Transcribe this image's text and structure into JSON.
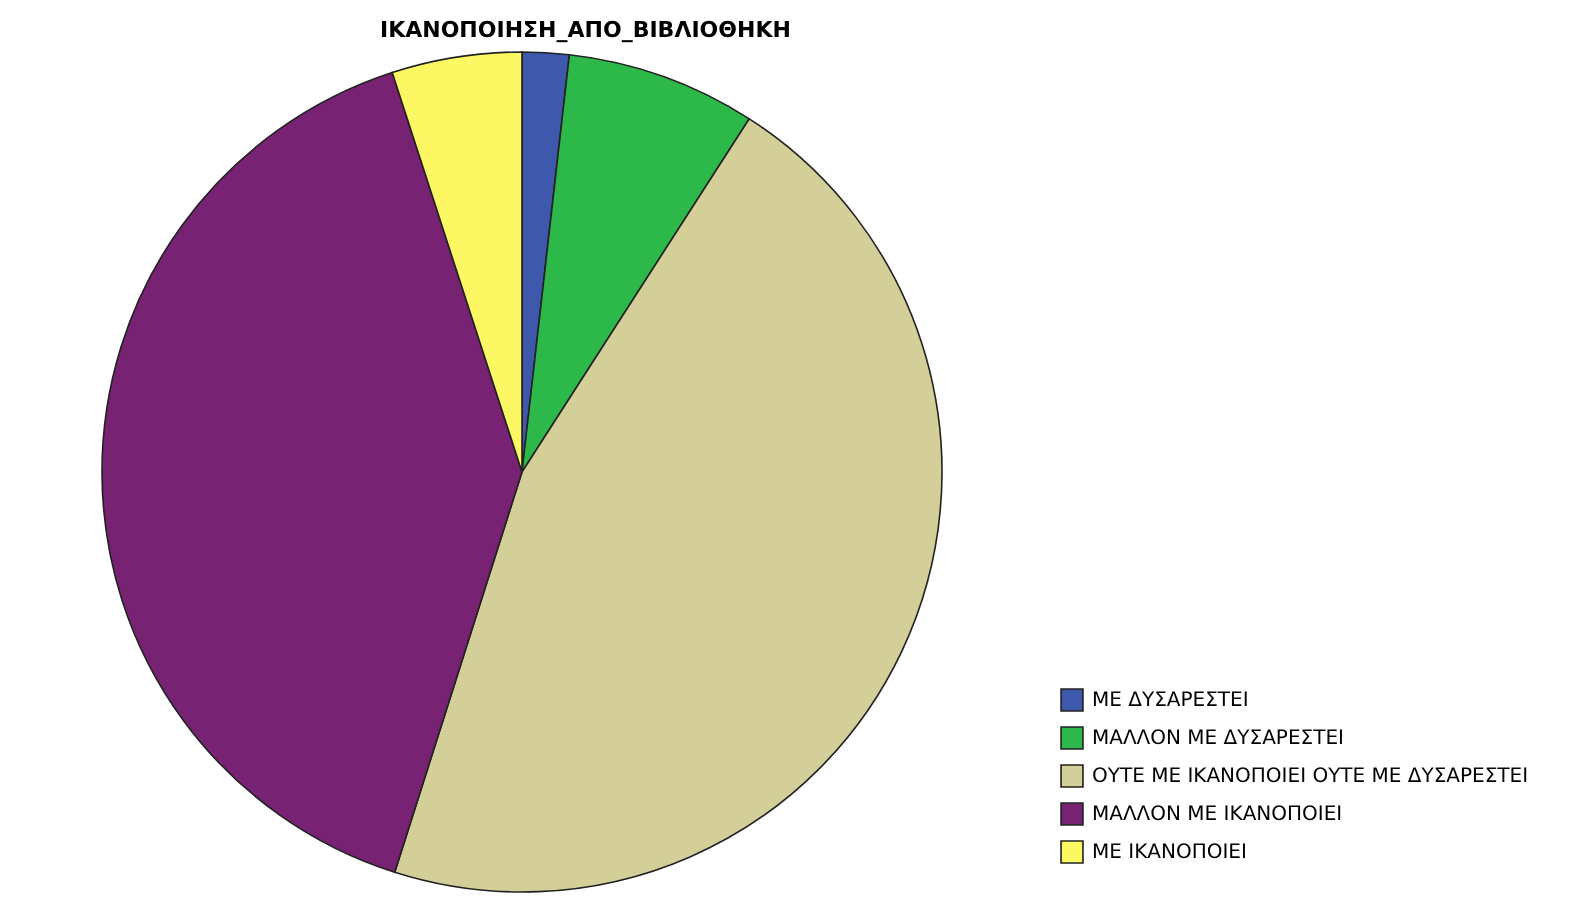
{
  "chart_data": {
    "type": "pie",
    "title": "ΙΚΑΝΟΠΟΙΗΣΗ_ΑΠΟ_ΒΙΒΛΙΟΘΗΚΗ",
    "categories": [
      "ΜΕ ΔΥΣΑΡΕΣΤΕΙ",
      "ΜΑΛΛΟΝ ΜΕ ΔΥΣΑΡΕΣΤΕΙ",
      "ΟΥΤΕ ΜΕ ΙΚΑΝΟΠΟΙΕΙ ΟΥΤΕ ΜΕ ΔΥΣΑΡΕΣΤΕΙ",
      "ΜΑΛΛΟΝ ΜΕ ΙΚΑΝΟΠΟΙΕΙ",
      "ΜΕ ΙΚΑΝΟΠΟΙΕΙ"
    ],
    "values": [
      1.8,
      7.3,
      45.8,
      40.1,
      5
    ],
    "colors": [
      "#3e58ac",
      "#2db84a",
      "#d4cf98",
      "#782273",
      "#fbf863"
    ],
    "legend": "bottom right"
  }
}
